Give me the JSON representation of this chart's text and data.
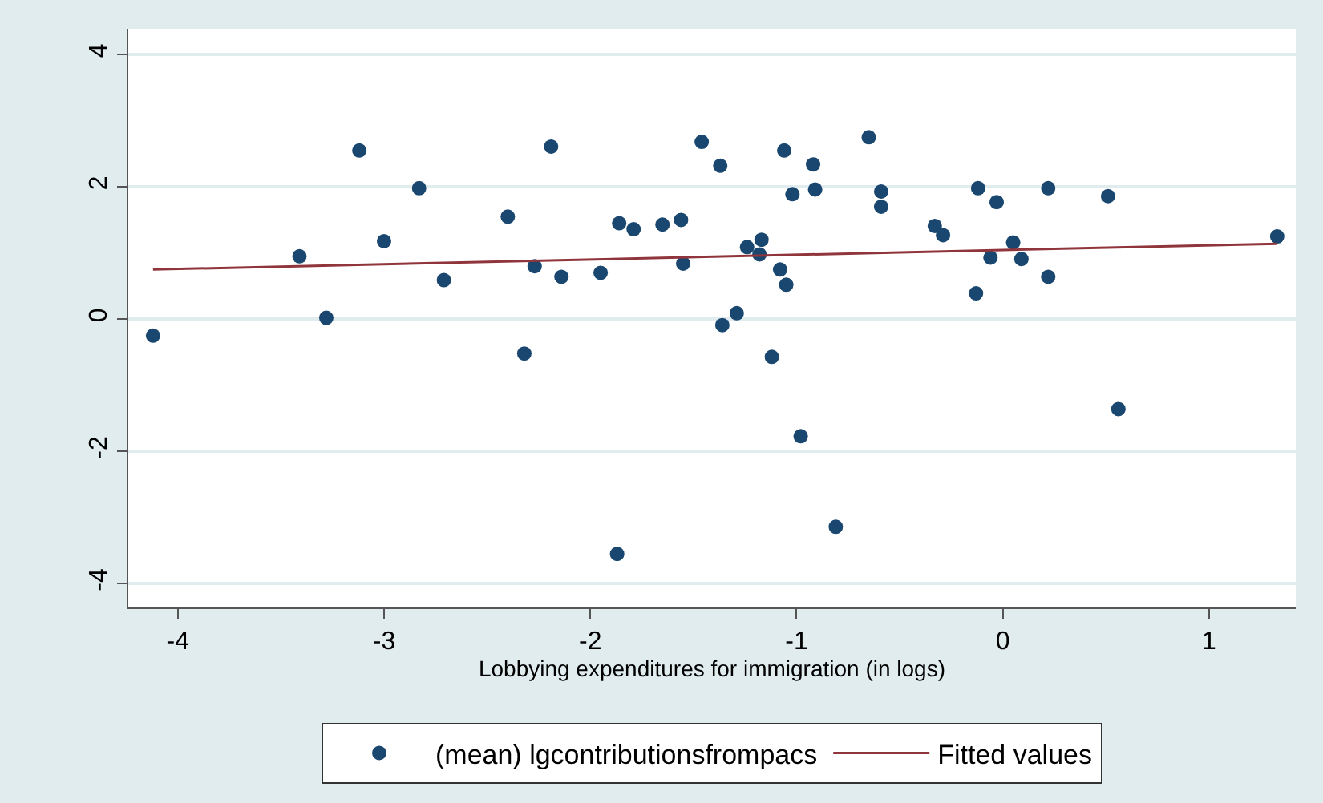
{
  "chart_data": {
    "type": "scatter",
    "xlabel": "Lobbying expenditures for immigration (in logs)",
    "xlim": [
      -4.24,
      1.42
    ],
    "xticks": [
      -4,
      -3,
      -2,
      -1,
      0,
      1
    ],
    "ylim": [
      -4.36,
      4.39
    ],
    "yticks": [
      -4,
      -2,
      0,
      2,
      4
    ],
    "grid": "y",
    "legend": "bottom",
    "marker": "circle",
    "series": [
      {
        "name": "(mean) lgcontributionsfrompacs",
        "color": "#1a476f",
        "x": [
          -4.12,
          -3.41,
          -3.28,
          -3.12,
          -3.0,
          -2.83,
          -2.71,
          -2.4,
          -2.32,
          -2.27,
          -2.19,
          -2.14,
          -1.95,
          -1.86,
          -1.87,
          -1.79,
          -1.65,
          -1.56,
          -1.55,
          -1.46,
          -1.37,
          -1.36,
          -1.29,
          -1.24,
          -1.18,
          -1.17,
          -1.12,
          -1.08,
          -1.06,
          -1.05,
          -1.02,
          -0.98,
          -0.92,
          -0.91,
          -0.81,
          -0.65,
          -0.59,
          -0.59,
          -0.33,
          -0.29,
          -0.12,
          -0.13,
          -0.06,
          -0.03,
          0.05,
          0.09,
          0.22,
          0.22,
          0.51,
          0.56,
          1.33
        ],
        "values": [
          -0.25,
          0.95,
          0.02,
          2.55,
          1.18,
          1.98,
          0.59,
          1.55,
          -0.52,
          0.8,
          2.61,
          0.64,
          0.7,
          1.45,
          -3.55,
          1.36,
          1.43,
          1.5,
          0.84,
          2.68,
          2.32,
          -0.09,
          0.09,
          1.09,
          0.98,
          1.2,
          -0.57,
          0.75,
          2.55,
          0.52,
          1.89,
          -1.77,
          2.34,
          1.96,
          -3.14,
          2.75,
          1.93,
          1.7,
          1.41,
          1.27,
          1.98,
          0.39,
          0.93,
          1.77,
          1.16,
          0.91,
          1.98,
          0.64,
          1.86,
          -1.36,
          1.25
        ]
      },
      {
        "name": "Fitted values",
        "type": "line",
        "color": "#90353b",
        "x": [
          -4.12,
          1.33
        ],
        "values": [
          0.75,
          1.14
        ],
        "marker": "none"
      }
    ]
  }
}
